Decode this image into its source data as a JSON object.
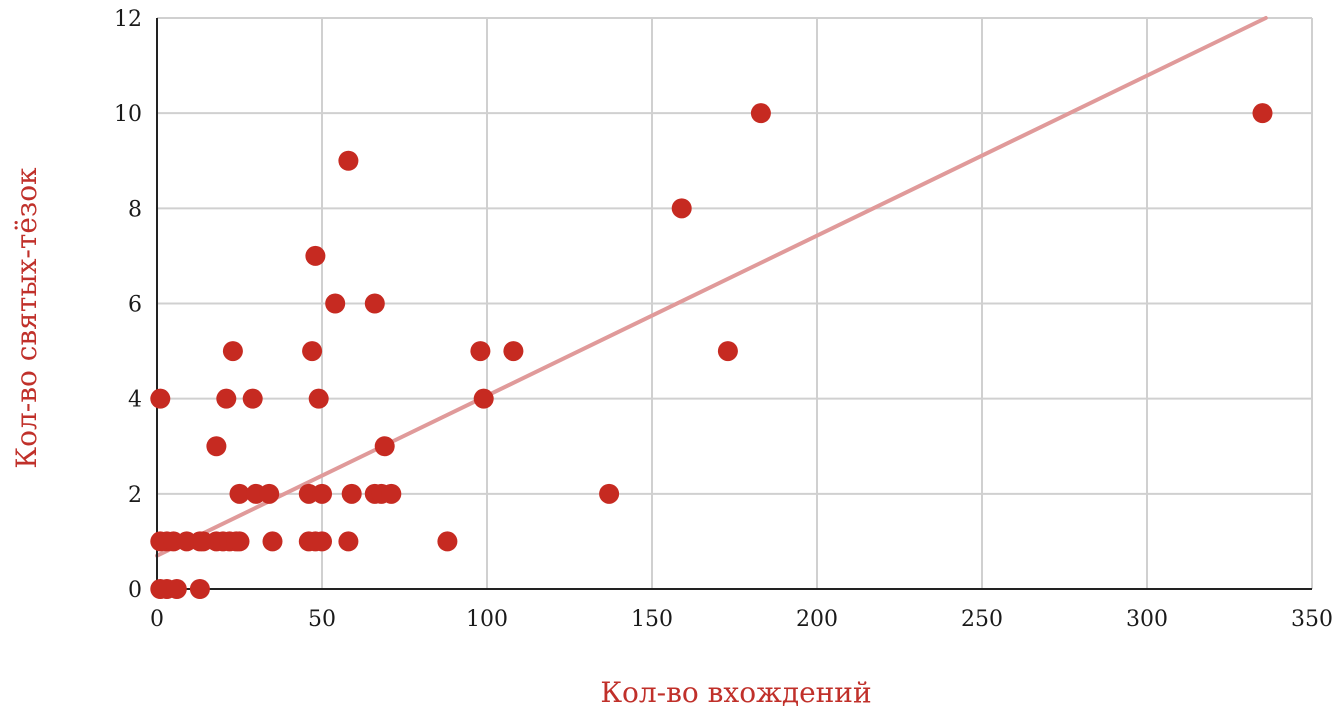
{
  "colors": {
    "point": "#C62A21",
    "trendline": "#E09A9A",
    "grid": "#D0D0D0",
    "axis_title": "#C0302A",
    "axis_line": "#222222"
  },
  "chart_data": {
    "type": "scatter",
    "title": "",
    "xlabel": "Кол-во вхождений",
    "ylabel": "Кол-во святых-тёзок",
    "xlim": [
      0,
      350
    ],
    "ylim": [
      0,
      12
    ],
    "xticks": [
      0,
      50,
      100,
      150,
      200,
      250,
      300,
      350
    ],
    "yticks": [
      0,
      2,
      4,
      6,
      8,
      10,
      12
    ],
    "grid": true,
    "legend": "none",
    "points": [
      {
        "x": 1,
        "y": 0
      },
      {
        "x": 3,
        "y": 0
      },
      {
        "x": 6,
        "y": 0
      },
      {
        "x": 13,
        "y": 0
      },
      {
        "x": 1,
        "y": 1
      },
      {
        "x": 3,
        "y": 1
      },
      {
        "x": 5,
        "y": 1
      },
      {
        "x": 9,
        "y": 1
      },
      {
        "x": 13,
        "y": 1
      },
      {
        "x": 14,
        "y": 1
      },
      {
        "x": 18,
        "y": 1
      },
      {
        "x": 20,
        "y": 1
      },
      {
        "x": 22,
        "y": 1
      },
      {
        "x": 24,
        "y": 1
      },
      {
        "x": 25,
        "y": 1
      },
      {
        "x": 35,
        "y": 1
      },
      {
        "x": 46,
        "y": 1
      },
      {
        "x": 48,
        "y": 1
      },
      {
        "x": 50,
        "y": 1
      },
      {
        "x": 58,
        "y": 1
      },
      {
        "x": 88,
        "y": 1
      },
      {
        "x": 25,
        "y": 2
      },
      {
        "x": 30,
        "y": 2
      },
      {
        "x": 34,
        "y": 2
      },
      {
        "x": 46,
        "y": 2
      },
      {
        "x": 50,
        "y": 2
      },
      {
        "x": 59,
        "y": 2
      },
      {
        "x": 66,
        "y": 2
      },
      {
        "x": 68,
        "y": 2
      },
      {
        "x": 71,
        "y": 2
      },
      {
        "x": 137,
        "y": 2
      },
      {
        "x": 18,
        "y": 3
      },
      {
        "x": 69,
        "y": 3
      },
      {
        "x": 1,
        "y": 4
      },
      {
        "x": 21,
        "y": 4
      },
      {
        "x": 29,
        "y": 4
      },
      {
        "x": 49,
        "y": 4
      },
      {
        "x": 99,
        "y": 4
      },
      {
        "x": 23,
        "y": 5
      },
      {
        "x": 47,
        "y": 5
      },
      {
        "x": 98,
        "y": 5
      },
      {
        "x": 108,
        "y": 5
      },
      {
        "x": 173,
        "y": 5
      },
      {
        "x": 54,
        "y": 6
      },
      {
        "x": 66,
        "y": 6
      },
      {
        "x": 48,
        "y": 7
      },
      {
        "x": 159,
        "y": 8
      },
      {
        "x": 58,
        "y": 9
      },
      {
        "x": 183,
        "y": 10
      },
      {
        "x": 335,
        "y": 10
      }
    ],
    "trendline": {
      "x_start": 0,
      "y_start": 0.7,
      "x_end": 336,
      "y_end": 12
    }
  }
}
